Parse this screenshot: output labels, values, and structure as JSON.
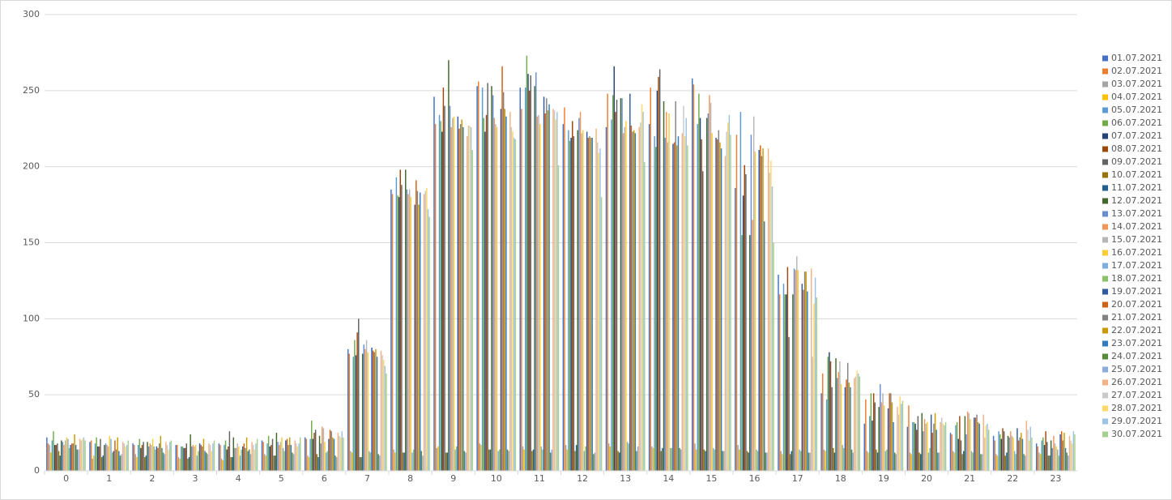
{
  "chart_data": {
    "type": "bar",
    "categories": [
      "0",
      "1",
      "2",
      "3",
      "4",
      "5",
      "6",
      "7",
      "8",
      "9",
      "10",
      "11",
      "12",
      "13",
      "14",
      "15",
      "16",
      "17",
      "18",
      "19",
      "20",
      "21",
      "22",
      "23"
    ],
    "ylim": [
      0,
      300
    ],
    "yticks": [
      0,
      50,
      100,
      150,
      200,
      250,
      300
    ],
    "grid": true,
    "legend": "right",
    "series": [
      {
        "name": "01.07.2021",
        "color": "#4472c4",
        "values": [
          22,
          19,
          18,
          17,
          18,
          20,
          22,
          80,
          185,
          246,
          253,
          252,
          228,
          226,
          228,
          258,
          186,
          129,
          51,
          31,
          29,
          25,
          23,
          18
        ]
      },
      {
        "name": "02.07.2021",
        "color": "#ed7d31",
        "values": [
          18,
          20,
          17,
          17,
          17,
          19,
          21,
          77,
          182,
          228,
          256,
          238,
          239,
          248,
          252,
          254,
          221,
          116,
          64,
          47,
          43,
          24,
          20,
          16
        ]
      },
      {
        "name": "03.07.2021",
        "color": "#a5a5a5",
        "values": [
          17,
          8,
          11,
          9,
          8,
          11,
          10,
          13,
          14,
          15,
          18,
          16,
          17,
          18,
          16,
          18,
          17,
          13,
          14,
          13,
          12,
          13,
          11,
          12
        ]
      },
      {
        "name": "04.07.2021",
        "color": "#ffc000",
        "values": [
          12,
          10,
          9,
          8,
          7,
          10,
          9,
          12,
          12,
          16,
          17,
          14,
          14,
          16,
          15,
          14,
          14,
          11,
          13,
          12,
          11,
          12,
          10,
          11
        ]
      },
      {
        "name": "05.07.2021",
        "color": "#5b9bd5",
        "values": [
          20,
          18,
          17,
          16,
          17,
          18,
          21,
          75,
          193,
          234,
          252,
          252,
          224,
          231,
          220,
          228,
          236,
          123,
          47,
          36,
          32,
          30,
          26,
          20
        ]
      },
      {
        "name": "06.07.2021",
        "color": "#70ad47",
        "values": [
          26,
          22,
          21,
          16,
          20,
          23,
          33,
          86,
          181,
          230,
          232,
          273,
          217,
          247,
          213,
          248,
          155,
          116,
          75,
          51,
          32,
          32,
          24,
          22
        ]
      },
      {
        "name": "07.07.2021",
        "color": "#264478",
        "values": [
          17,
          16,
          15,
          15,
          14,
          16,
          21,
          76,
          180,
          223,
          223,
          261,
          219,
          266,
          250,
          232,
          181,
          116,
          78,
          33,
          31,
          21,
          21,
          17
        ]
      },
      {
        "name": "08.07.2021",
        "color": "#9e480e",
        "values": [
          17,
          16,
          17,
          15,
          16,
          17,
          25,
          91,
          198,
          252,
          234,
          250,
          230,
          236,
          259,
          218,
          201,
          134,
          72,
          51,
          27,
          36,
          28,
          26
        ]
      },
      {
        "name": "09.07.2021",
        "color": "#636363",
        "values": [
          18,
          21,
          19,
          18,
          26,
          21,
          27,
          100,
          188,
          240,
          255,
          260,
          220,
          244,
          264,
          197,
          195,
          88,
          55,
          45,
          36,
          20,
          26,
          19
        ]
      },
      {
        "name": "10.07.2021",
        "color": "#997300",
        "values": [
          13,
          9,
          9,
          8,
          9,
          10,
          11,
          9,
          12,
          12,
          14,
          13,
          13,
          13,
          13,
          14,
          13,
          11,
          15,
          14,
          12,
          11,
          10,
          10
        ]
      },
      {
        "name": "11.07.2021",
        "color": "#255e91",
        "values": [
          10,
          10,
          10,
          9,
          9,
          10,
          9,
          9,
          12,
          12,
          14,
          14,
          17,
          12,
          15,
          13,
          12,
          13,
          12,
          12,
          11,
          13,
          12,
          10
        ]
      },
      {
        "name": "12.07.2021",
        "color": "#43682b",
        "values": [
          20,
          17,
          19,
          24,
          22,
          25,
          23,
          77,
          198,
          270,
          253,
          253,
          224,
          245,
          243,
          232,
          155,
          116,
          74,
          42,
          38,
          36,
          23,
          20
        ]
      },
      {
        "name": "13.07.2021",
        "color": "#698ed0",
        "values": [
          19,
          18,
          16,
          16,
          15,
          19,
          18,
          83,
          185,
          240,
          247,
          262,
          232,
          245,
          219,
          235,
          221,
          133,
          61,
          57,
          26,
          24,
          22,
          15
        ]
      },
      {
        "name": "14.07.2021",
        "color": "#f1975a",
        "values": [
          17,
          17,
          18,
          17,
          15,
          17,
          29,
          80,
          182,
          226,
          232,
          233,
          236,
          222,
          236,
          247,
          165,
          132,
          65,
          45,
          34,
          39,
          26,
          23
        ]
      },
      {
        "name": "15.07.2021",
        "color": "#b7b7b7",
        "values": [
          20,
          16,
          17,
          16,
          18,
          19,
          28,
          86,
          185,
          232,
          228,
          234,
          222,
          226,
          216,
          242,
          233,
          141,
          72,
          51,
          31,
          38,
          23,
          18
        ]
      },
      {
        "name": "16.07.2021",
        "color": "#ffcd33",
        "values": [
          22,
          23,
          21,
          17,
          16,
          22,
          19,
          78,
          180,
          233,
          226,
          228,
          224,
          230,
          235,
          222,
          210,
          132,
          57,
          43,
          32,
          34,
          22,
          16
        ]
      },
      {
        "name": "17.07.2021",
        "color": "#7cafdd",
        "values": [
          21,
          21,
          16,
          10,
          10,
          15,
          12,
          13,
          12,
          14,
          13,
          16,
          13,
          19,
          15,
          15,
          14,
          14,
          17,
          13,
          12,
          13,
          13,
          14
        ]
      },
      {
        "name": "18.07.2021",
        "color": "#8cc168",
        "values": [
          15,
          12,
          14,
          13,
          14,
          13,
          13,
          12,
          14,
          16,
          14,
          14,
          16,
          18,
          15,
          14,
          13,
          13,
          15,
          14,
          15,
          12,
          11,
          10
        ]
      },
      {
        "name": "19.07.2021",
        "color": "#335aa1",
        "values": [
          17,
          13,
          16,
          18,
          16,
          20,
          21,
          81,
          175,
          233,
          238,
          246,
          223,
          248,
          215,
          219,
          211,
          123,
          55,
          41,
          37,
          35,
          28,
          24
        ]
      },
      {
        "name": "20.07.2021",
        "color": "#d26012",
        "values": [
          18,
          20,
          15,
          17,
          18,
          21,
          27,
          79,
          191,
          225,
          266,
          235,
          219,
          227,
          216,
          218,
          214,
          119,
          60,
          51,
          25,
          35,
          20,
          26
        ]
      },
      {
        "name": "21.07.2021",
        "color": "#848484",
        "values": [
          18,
          14,
          18,
          16,
          15,
          17,
          26,
          78,
          184,
          228,
          249,
          245,
          220,
          223,
          243,
          224,
          207,
          131,
          71,
          51,
          31,
          37,
          22,
          20
        ]
      },
      {
        "name": "22.07.2021",
        "color": "#cc9a00",
        "values": [
          24,
          22,
          23,
          21,
          22,
          22,
          22,
          80,
          175,
          231,
          238,
          237,
          219,
          224,
          214,
          216,
          212,
          131,
          58,
          45,
          38,
          32,
          25,
          25
        ]
      },
      {
        "name": "23.07.2021",
        "color": "#327dc2",
        "values": [
          17,
          13,
          15,
          13,
          13,
          17,
          21,
          75,
          183,
          226,
          233,
          241,
          219,
          222,
          220,
          212,
          164,
          118,
          55,
          32,
          27,
          31,
          21,
          15
        ]
      },
      {
        "name": "24.07.2021",
        "color": "#5a8a39",
        "values": [
          14,
          10,
          12,
          12,
          14,
          12,
          10,
          11,
          13,
          13,
          14,
          12,
          11,
          13,
          15,
          13,
          12,
          12,
          14,
          12,
          12,
          11,
          11,
          12
        ]
      },
      {
        "name": "25.07.2021",
        "color": "#8faadc",
        "values": [
          14,
          11,
          11,
          11,
          11,
          11,
          9,
          10,
          10,
          12,
          13,
          14,
          12,
          16,
          14,
          13,
          12,
          12,
          12,
          11,
          12,
          11,
          10,
          10
        ]
      },
      {
        "name": "26.07.2021",
        "color": "#f4b183",
        "values": [
          21,
          19,
          19,
          18,
          19,
          20,
          25,
          79,
          182,
          220,
          236,
          238,
          225,
          226,
          222,
          207,
          212,
          133,
          61,
          42,
          32,
          37,
          33,
          23
        ]
      },
      {
        "name": "27.07.2021",
        "color": "#c9c9c9",
        "values": [
          20,
          18,
          17,
          17,
          17,
          18,
          23,
          76,
          184,
          227,
          226,
          237,
          216,
          229,
          240,
          223,
          196,
          75,
          62,
          37,
          35,
          22,
          27,
          20
        ]
      },
      {
        "name": "28.07.2021",
        "color": "#ffd966",
        "values": [
          21,
          16,
          14,
          13,
          14,
          16,
          22,
          73,
          186,
          227,
          223,
          231,
          209,
          241,
          220,
          229,
          204,
          110,
          66,
          49,
          31,
          30,
          20,
          18
        ]
      },
      {
        "name": "29.07.2021",
        "color": "#9dc3e6",
        "values": [
          22,
          17,
          19,
          18,
          18,
          18,
          26,
          69,
          172,
          226,
          219,
          236,
          212,
          236,
          232,
          234,
          187,
          127,
          64,
          44,
          30,
          31,
          29,
          26
        ]
      },
      {
        "name": "30.07.2021",
        "color": "#a9d18e",
        "values": [
          20,
          20,
          20,
          20,
          21,
          22,
          22,
          64,
          167,
          211,
          218,
          201,
          180,
          203,
          214,
          221,
          150,
          114,
          62,
          46,
          32,
          27,
          22,
          24
        ]
      }
    ]
  }
}
